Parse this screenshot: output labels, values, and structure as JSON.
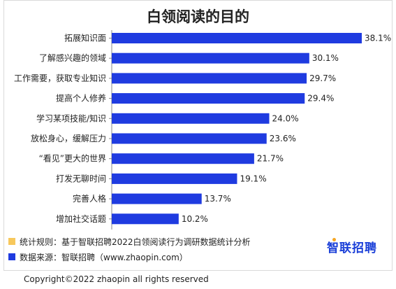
{
  "chart_data": {
    "type": "bar",
    "orientation": "horizontal",
    "title": "白领阅读的目的",
    "categories": [
      "拓展知识面",
      "了解感兴趣的领域",
      "工作需要，获取专业知识",
      "提高个人修养",
      "学习某项技能/知识",
      "放松身心，缓解压力",
      "“看见”更大的世界",
      "打发无聊时间",
      "完善人格",
      "增加社交话题"
    ],
    "values": [
      38.1,
      30.1,
      29.7,
      29.4,
      24.0,
      23.6,
      21.7,
      19.1,
      13.7,
      10.2
    ],
    "value_labels": [
      "38.1%",
      "30.1%",
      "29.7%",
      "29.4%",
      "24.0%",
      "23.6%",
      "21.7%",
      "19.1%",
      "13.7%",
      "10.2%"
    ],
    "xlim": [
      0,
      38.1
    ],
    "grid": false,
    "bar_color": "#1f3be0"
  },
  "notes": [
    {
      "text": "统计规则：基于智联招聘2022白领阅读行为调研数据统计分析",
      "color": "#f7c85c"
    },
    {
      "text": "数据来源：智联招聘（www.zhaopin.com）",
      "color": "#1f3be0"
    }
  ],
  "logo": {
    "text": "智联招聘",
    "color": "#1a3fd8"
  },
  "copyright": "Copyright©2022 zhaopin all rights reserved"
}
